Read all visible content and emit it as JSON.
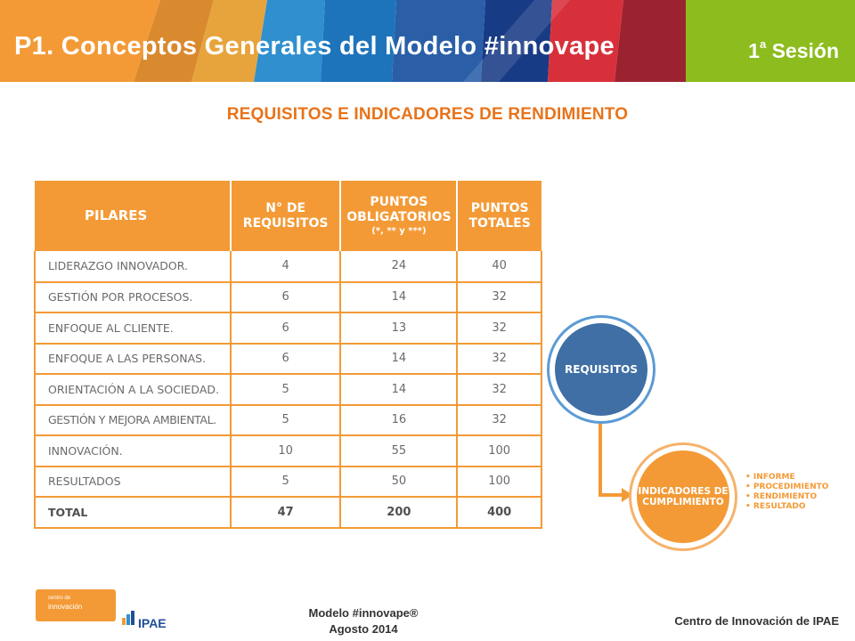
{
  "header": {
    "title": "P1. Conceptos Generales del Modelo #innovape",
    "session_number": "1",
    "session_superscript": "a",
    "session_label": "Sesión"
  },
  "subtitle": "REQUISITOS E INDICADORES DE RENDIMIENTO",
  "table": {
    "headers": {
      "pillar": "PILARES",
      "requirements": "N° DE REQUISITOS",
      "mandatory_points": "PUNTOS OBLIGATORIOS",
      "mandatory_note": "(*, ** y ***)",
      "total_points": "PUNTOS TOTALES"
    },
    "rows": [
      {
        "pillar": "LIDERAZGO INNOVADOR.",
        "requirements": "4",
        "mandatory": "24",
        "total": "40"
      },
      {
        "pillar": "GESTIÓN POR PROCESOS.",
        "requirements": "6",
        "mandatory": "14",
        "total": "32"
      },
      {
        "pillar": "ENFOQUE AL CLIENTE.",
        "requirements": "6",
        "mandatory": "13",
        "total": "32"
      },
      {
        "pillar": "ENFOQUE A LAS PERSONAS.",
        "requirements": "6",
        "mandatory": "14",
        "total": "32"
      },
      {
        "pillar": "ORIENTACIÓN A LA SOCIEDAD.",
        "requirements": "5",
        "mandatory": "14",
        "total": "32"
      },
      {
        "pillar": "GESTIÓN Y MEJORA AMBIENTAL.",
        "requirements": "5",
        "mandatory": "16",
        "total": "32"
      },
      {
        "pillar": "INNOVACIÓN.",
        "requirements": "10",
        "mandatory": "55",
        "total": "100"
      },
      {
        "pillar": "RESULTADOS",
        "requirements": "5",
        "mandatory": "50",
        "total": "100"
      },
      {
        "pillar": "TOTAL",
        "requirements": "47",
        "mandatory": "200",
        "total": "400"
      }
    ]
  },
  "diagram": {
    "requirements_label": "REQUISITOS",
    "indicators_label": "INDICADORES DE CUMPLIMIENTO",
    "indicators_items": [
      "INFORME",
      "PROCEDIMIENTO",
      "RENDIMIENTO",
      "RESULTADO"
    ]
  },
  "footer": {
    "logo_ci_small": "centro de",
    "logo_ci_word": "innovación",
    "logo_ipae": "IPAE",
    "model": "Modelo #innovape®",
    "date": "Agosto 2014",
    "right": "Centro de Innovación de IPAE"
  },
  "colors": {
    "accent_orange": "#f39a36",
    "title_orange": "#e8731a",
    "blue": "#3f6fa4",
    "green": "#8cbc1e"
  }
}
